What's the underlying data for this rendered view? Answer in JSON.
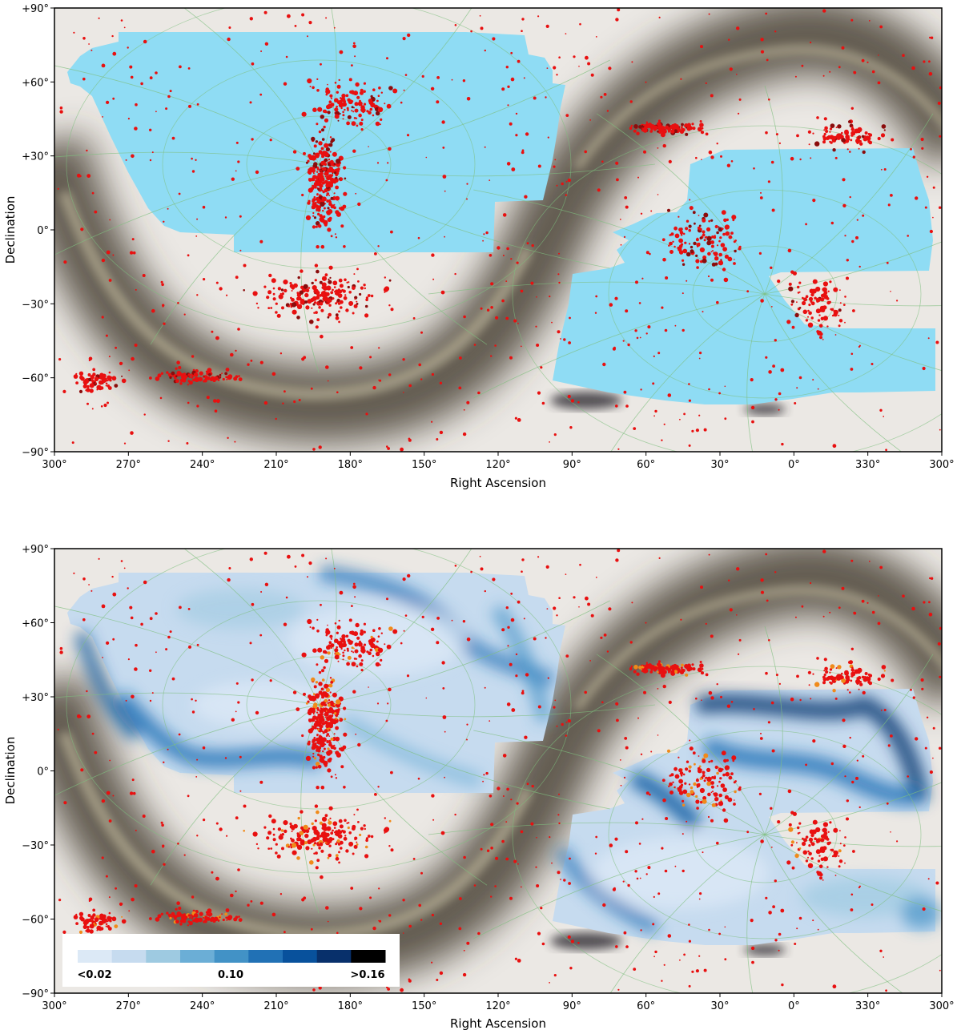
{
  "panels": [
    {
      "id": "top",
      "xlabel": "Right Ascension",
      "ylabel": "Declination",
      "ra_ticks": [
        "300°",
        "270°",
        "240°",
        "210°",
        "180°",
        "150°",
        "120°",
        "90°",
        "60°",
        "30°",
        "0°",
        "330°",
        "300°"
      ],
      "dec_ticks": [
        "+90°",
        "+60°",
        "+30°",
        "0°",
        "−30°",
        "−60°",
        "−90°"
      ],
      "footprint_fill": "#8fdcf4"
    },
    {
      "id": "bottom",
      "xlabel": "Right Ascension",
      "ylabel": "Declination",
      "ra_ticks": [
        "300°",
        "270°",
        "240°",
        "210°",
        "180°",
        "150°",
        "120°",
        "90°",
        "60°",
        "30°",
        "0°",
        "330°",
        "300°"
      ],
      "dec_ticks": [
        "+90°",
        "+60°",
        "+30°",
        "0°",
        "−30°",
        "−60°",
        "−90°"
      ],
      "footprint_colormap": "Blues"
    }
  ],
  "colorbar": {
    "min_label": "<0.02",
    "mid_label": "0.10",
    "max_label": ">0.16",
    "colors": [
      "#dce9f6",
      "#c6dbef",
      "#9ecae1",
      "#6baed6",
      "#4292c6",
      "#2171b5",
      "#08519c",
      "#08306b",
      "#000000"
    ]
  },
  "colors": {
    "milky_way": "#6f6656",
    "clusters": "#e81010",
    "dark_clusters": "#8b0c0c",
    "orange_clusters": "#f08a1a",
    "grid_lines": "#7fbf7f"
  }
}
